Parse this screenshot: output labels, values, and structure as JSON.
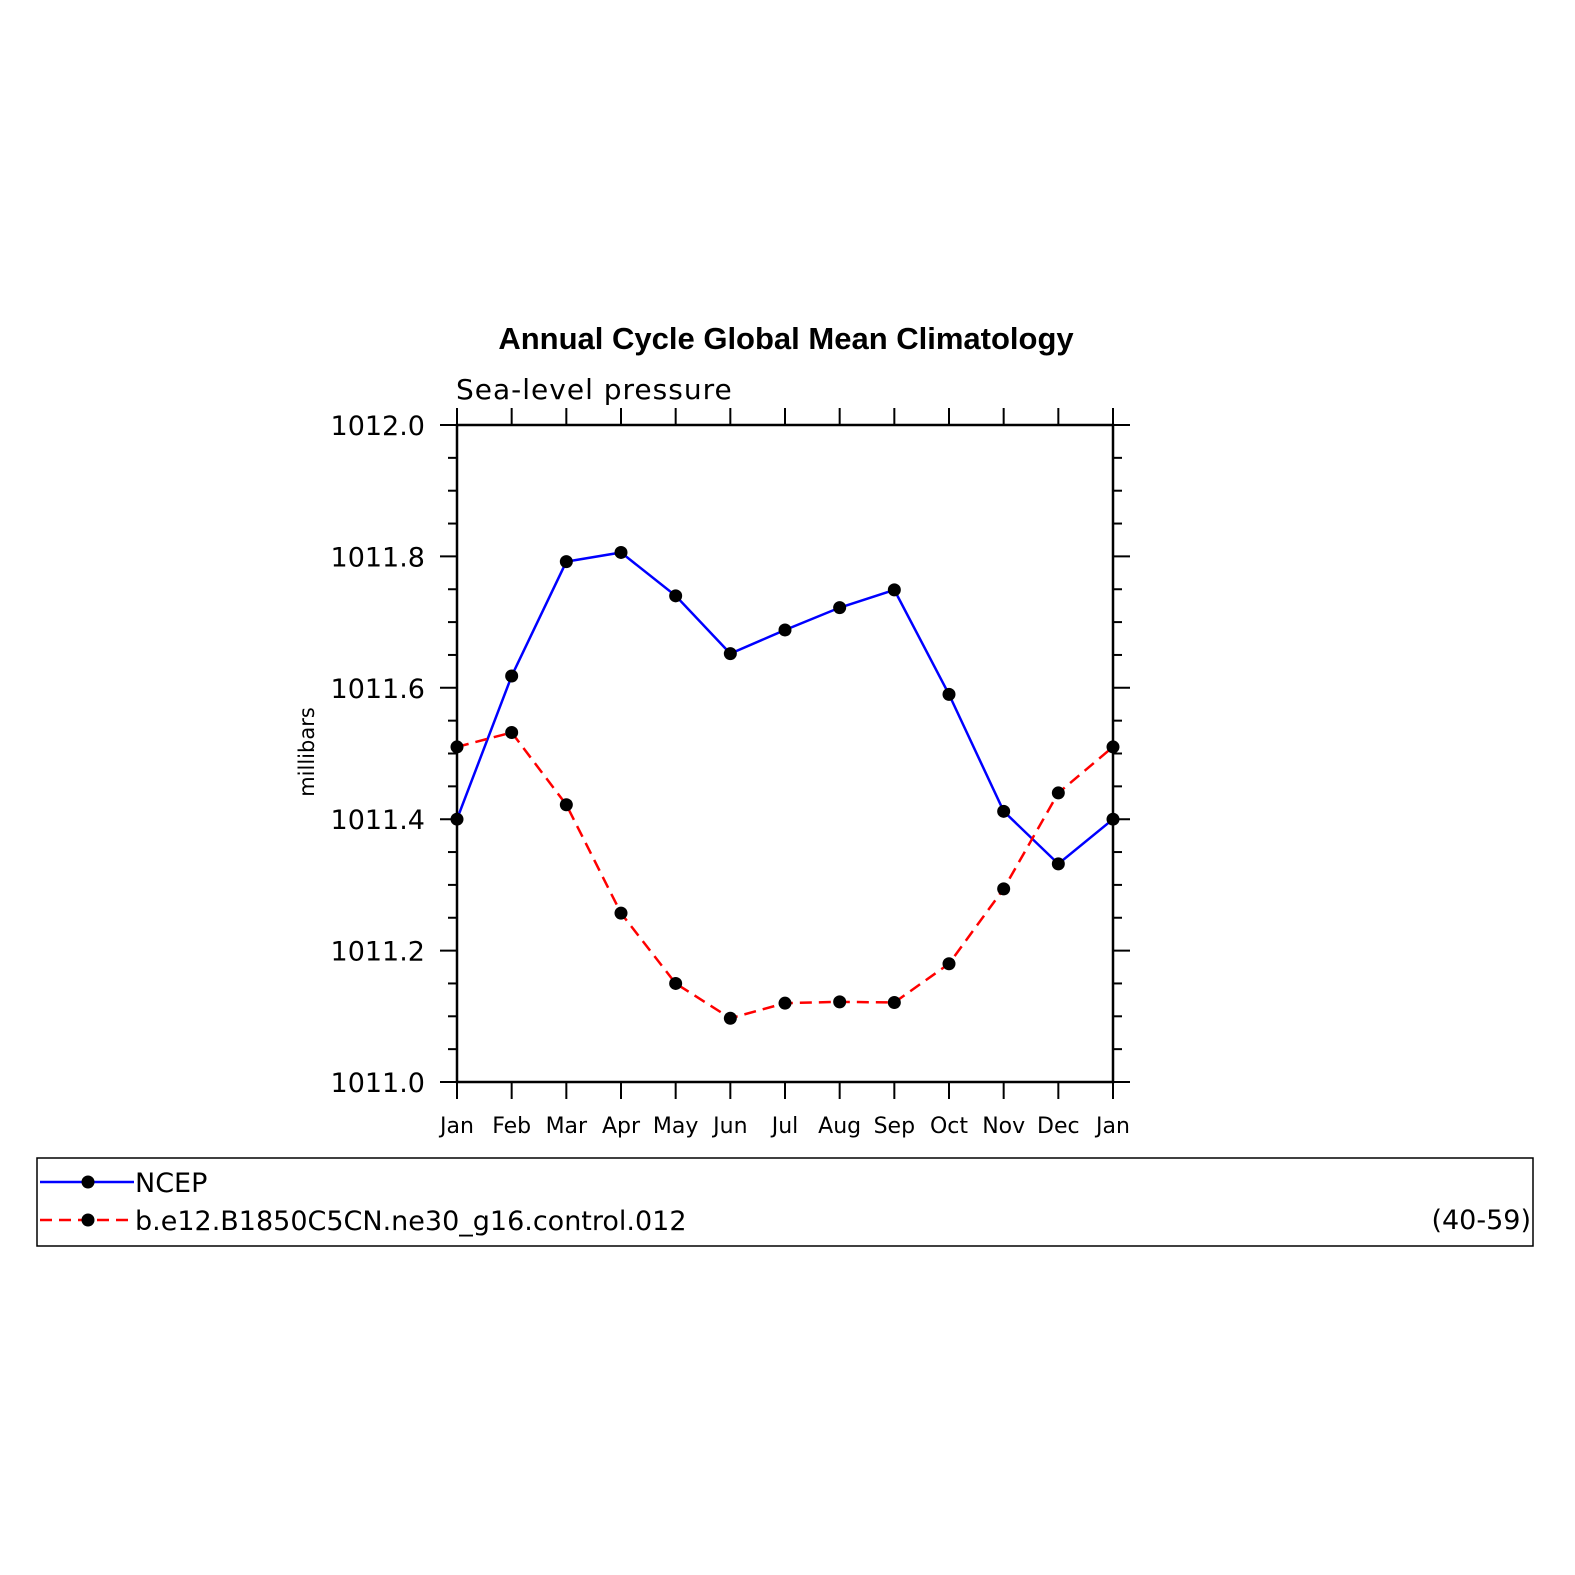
{
  "chart_data": {
    "type": "line",
    "title": "Annual Cycle Global Mean Climatology",
    "subtitle": "Sea-level pressure",
    "ylabel": "millibars",
    "xlabel": "",
    "ylim": [
      1011.0,
      1012.0
    ],
    "yticks": [
      "1011.0",
      "1011.2",
      "1011.4",
      "1011.6",
      "1011.8",
      "1012.0"
    ],
    "categories": [
      "Jan",
      "Feb",
      "Mar",
      "Apr",
      "May",
      "Jun",
      "Jul",
      "Aug",
      "Sep",
      "Oct",
      "Nov",
      "Dec",
      "Jan"
    ],
    "series": [
      {
        "name": "NCEP",
        "color": "#0000ff",
        "dash": "solid",
        "values": [
          1011.4,
          1011.618,
          1011.792,
          1011.806,
          1011.74,
          1011.652,
          1011.688,
          1011.722,
          1011.749,
          1011.59,
          1011.412,
          1011.332,
          1011.4
        ]
      },
      {
        "name": "b.e12.B1850C5CN.ne30_g16.control.012",
        "color": "#ff0000",
        "dash": "dashed",
        "values": [
          1011.51,
          1011.532,
          1011.422,
          1011.257,
          1011.15,
          1011.097,
          1011.12,
          1011.122,
          1011.121,
          1011.18,
          1011.294,
          1011.44,
          1011.51
        ]
      }
    ],
    "legend": {
      "position": "bottom",
      "note": "(40-59)"
    },
    "grid": false
  }
}
